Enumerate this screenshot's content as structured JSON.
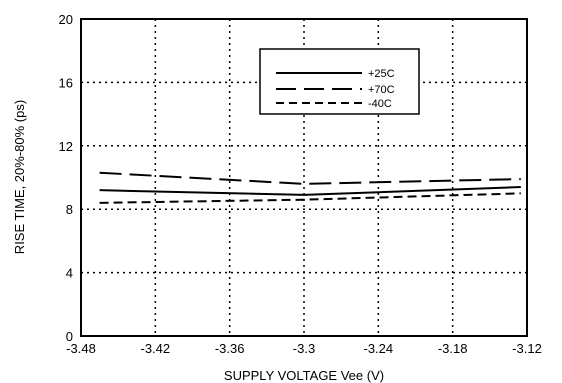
{
  "chart_data": {
    "type": "line",
    "xlabel": "SUPPLY VOLTAGE Vee (V)",
    "ylabel": "RISE TIME, 20%-80% (ps)",
    "xlim": [
      -3.48,
      -3.12
    ],
    "ylim": [
      0,
      20
    ],
    "xticks": [
      "-3.48",
      "-3.42",
      "-3.36",
      "-3.3",
      "-3.24",
      "-3.18",
      "-3.12"
    ],
    "yticks": [
      "0",
      "4",
      "8",
      "12",
      "16",
      "20"
    ],
    "grid": true,
    "legend_position": "top-right",
    "x": [
      -3.465,
      -3.3,
      -3.125
    ],
    "series": [
      {
        "name": "+25C",
        "style": "solid",
        "values": [
          9.2,
          8.9,
          9.4
        ]
      },
      {
        "name": "+70C",
        "style": "long-dash",
        "values": [
          10.3,
          9.6,
          9.9
        ]
      },
      {
        "name": "-40C",
        "style": "short-dash",
        "values": [
          8.4,
          8.6,
          9.0
        ]
      }
    ]
  }
}
